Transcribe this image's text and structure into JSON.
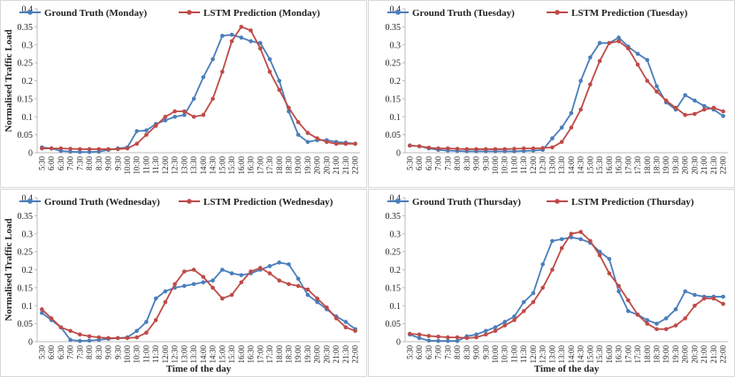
{
  "chart_data": [
    {
      "type": "line",
      "categories": [
        "5:30",
        "6:00",
        "6:30",
        "7:00",
        "7:30",
        "8:00",
        "8:30",
        "9:00",
        "9:30",
        "10:00",
        "10:30",
        "11:00",
        "11:30",
        "12:00",
        "12:30",
        "13:00",
        "13:30",
        "14:00",
        "14:30",
        "15:00",
        "15:30",
        "16:00",
        "16:30",
        "17:00",
        "17:30",
        "18:00",
        "18:30",
        "19:00",
        "19:30",
        "20:00",
        "20:30",
        "21:00",
        "21:30",
        "22:00"
      ],
      "series": [
        {
          "name": "Ground Truth (Monday)",
          "color": "#4a7ebb",
          "values": [
            0.015,
            0.012,
            0.005,
            0.003,
            0.002,
            0.002,
            0.003,
            0.008,
            0.012,
            0.015,
            0.06,
            0.062,
            0.08,
            0.09,
            0.1,
            0.105,
            0.15,
            0.21,
            0.26,
            0.325,
            0.328,
            0.32,
            0.31,
            0.305,
            0.26,
            0.2,
            0.115,
            0.05,
            0.03,
            0.035,
            0.035,
            0.03,
            0.028,
            0.025
          ]
        },
        {
          "name": "LSTM Prediction (Monday)",
          "color": "#be4b48",
          "values": [
            0.012,
            0.012,
            0.012,
            0.011,
            0.01,
            0.01,
            0.01,
            0.01,
            0.01,
            0.012,
            0.025,
            0.05,
            0.075,
            0.1,
            0.115,
            0.115,
            0.1,
            0.105,
            0.15,
            0.225,
            0.31,
            0.35,
            0.34,
            0.29,
            0.225,
            0.175,
            0.125,
            0.085,
            0.055,
            0.04,
            0.03,
            0.025,
            0.025,
            0.025
          ]
        }
      ],
      "ylim": [
        0,
        0.4
      ],
      "yticks": [
        0,
        0.05,
        0.1,
        0.15,
        0.2,
        0.25,
        0.3,
        0.35,
        0.4
      ],
      "grid": false,
      "y_label": "Normalised Traffic Load"
    },
    {
      "type": "line",
      "categories": [
        "5:30",
        "6:00",
        "6:30",
        "7:00",
        "7:30",
        "8:00",
        "8:30",
        "9:00",
        "9:30",
        "10:00",
        "10:30",
        "11:00",
        "11:30",
        "12:00",
        "12:30",
        "13:00",
        "13:30",
        "14:00",
        "14:30",
        "15:00",
        "15:30",
        "16:00",
        "16:30",
        "17:00",
        "17:30",
        "18:00",
        "18:30",
        "19:00",
        "19:30",
        "20:00",
        "20:30",
        "21:00",
        "21:30",
        "22:00"
      ],
      "series": [
        {
          "name": "Ground Truth (Tuesday)",
          "color": "#4a7ebb",
          "values": [
            0.02,
            0.018,
            0.012,
            0.008,
            0.006,
            0.005,
            0.004,
            0.004,
            0.004,
            0.004,
            0.004,
            0.004,
            0.005,
            0.006,
            0.008,
            0.04,
            0.07,
            0.11,
            0.2,
            0.265,
            0.305,
            0.305,
            0.32,
            0.295,
            0.275,
            0.258,
            0.185,
            0.14,
            0.12,
            0.16,
            0.145,
            0.13,
            0.12,
            0.102
          ]
        },
        {
          "name": "LSTM Prediction (Tuesday)",
          "color": "#be4b48",
          "values": [
            0.02,
            0.018,
            0.014,
            0.012,
            0.012,
            0.011,
            0.01,
            0.01,
            0.01,
            0.01,
            0.01,
            0.011,
            0.012,
            0.012,
            0.013,
            0.015,
            0.03,
            0.07,
            0.12,
            0.19,
            0.255,
            0.305,
            0.31,
            0.29,
            0.245,
            0.2,
            0.17,
            0.145,
            0.125,
            0.105,
            0.108,
            0.12,
            0.125,
            0.115
          ]
        }
      ],
      "ylim": [
        0,
        0.4
      ],
      "yticks": [
        0,
        0.05,
        0.1,
        0.15,
        0.2,
        0.25,
        0.3,
        0.35,
        0.4
      ],
      "grid": false
    },
    {
      "type": "line",
      "categories": [
        "5:30",
        "6:00",
        "6:30",
        "7:00",
        "7:30",
        "8:00",
        "8:30",
        "9:00",
        "9:30",
        "10:00",
        "10:30",
        "11:00",
        "11:30",
        "12:00",
        "12:30",
        "13:00",
        "13:30",
        "14:00",
        "14:30",
        "15:00",
        "15:30",
        "16:00",
        "16:30",
        "17:00",
        "17:30",
        "18:00",
        "18:30",
        "19:00",
        "19:30",
        "20:00",
        "20:30",
        "21:00",
        "21:30",
        "22:00"
      ],
      "series": [
        {
          "name": "Ground Truth (Wednesday)",
          "color": "#4a7ebb",
          "values": [
            0.08,
            0.06,
            0.04,
            0.005,
            0.002,
            0.003,
            0.005,
            0.008,
            0.01,
            0.012,
            0.03,
            0.055,
            0.12,
            0.14,
            0.15,
            0.155,
            0.16,
            0.165,
            0.17,
            0.2,
            0.19,
            0.185,
            0.19,
            0.2,
            0.21,
            0.22,
            0.215,
            0.175,
            0.13,
            0.11,
            0.09,
            0.07,
            0.055,
            0.035
          ]
        },
        {
          "name": "LSTM Prediction (Wednesday)",
          "color": "#be4b48",
          "values": [
            0.09,
            0.065,
            0.04,
            0.03,
            0.02,
            0.015,
            0.012,
            0.01,
            0.01,
            0.01,
            0.012,
            0.025,
            0.06,
            0.11,
            0.16,
            0.195,
            0.2,
            0.18,
            0.15,
            0.12,
            0.13,
            0.165,
            0.195,
            0.205,
            0.19,
            0.17,
            0.16,
            0.155,
            0.145,
            0.12,
            0.095,
            0.065,
            0.04,
            0.03
          ]
        }
      ],
      "ylim": [
        0,
        0.4
      ],
      "yticks": [
        0,
        0.05,
        0.1,
        0.15,
        0.2,
        0.25,
        0.3,
        0.35,
        0.4
      ],
      "grid": false,
      "y_label": "Normalised Traffic Load",
      "x_label": "Time of the day"
    },
    {
      "type": "line",
      "categories": [
        "5:30",
        "6:00",
        "6:30",
        "7:00",
        "7:30",
        "8:00",
        "8:30",
        "9:00",
        "9:30",
        "10:00",
        "10:30",
        "11:00",
        "11:30",
        "12:00",
        "12:30",
        "13:00",
        "13:30",
        "14:00",
        "14:30",
        "15:00",
        "15:30",
        "16:00",
        "16:30",
        "17:00",
        "17:30",
        "18:00",
        "18:30",
        "19:00",
        "19:30",
        "20:00",
        "20:30",
        "21:00",
        "21:30",
        "22:00"
      ],
      "series": [
        {
          "name": "Ground Truth (Thursday)",
          "color": "#4a7ebb",
          "values": [
            0.02,
            0.01,
            0.003,
            0.002,
            0.002,
            0.002,
            0.015,
            0.02,
            0.03,
            0.04,
            0.055,
            0.07,
            0.11,
            0.135,
            0.215,
            0.28,
            0.285,
            0.29,
            0.285,
            0.275,
            0.25,
            0.23,
            0.14,
            0.085,
            0.075,
            0.06,
            0.05,
            0.065,
            0.09,
            0.14,
            0.13,
            0.125,
            0.125,
            0.125
          ]
        },
        {
          "name": "LSTM Prediction (Thursday)",
          "color": "#be4b48",
          "values": [
            0.022,
            0.02,
            0.016,
            0.014,
            0.012,
            0.012,
            0.01,
            0.012,
            0.02,
            0.03,
            0.045,
            0.06,
            0.085,
            0.11,
            0.15,
            0.2,
            0.26,
            0.3,
            0.305,
            0.28,
            0.24,
            0.19,
            0.155,
            0.115,
            0.075,
            0.05,
            0.035,
            0.035,
            0.045,
            0.065,
            0.1,
            0.12,
            0.12,
            0.105
          ]
        }
      ],
      "ylim": [
        0,
        0.4
      ],
      "yticks": [
        0,
        0.05,
        0.1,
        0.15,
        0.2,
        0.25,
        0.3,
        0.35,
        0.4
      ],
      "grid": false,
      "x_label": "Time of the day"
    }
  ]
}
